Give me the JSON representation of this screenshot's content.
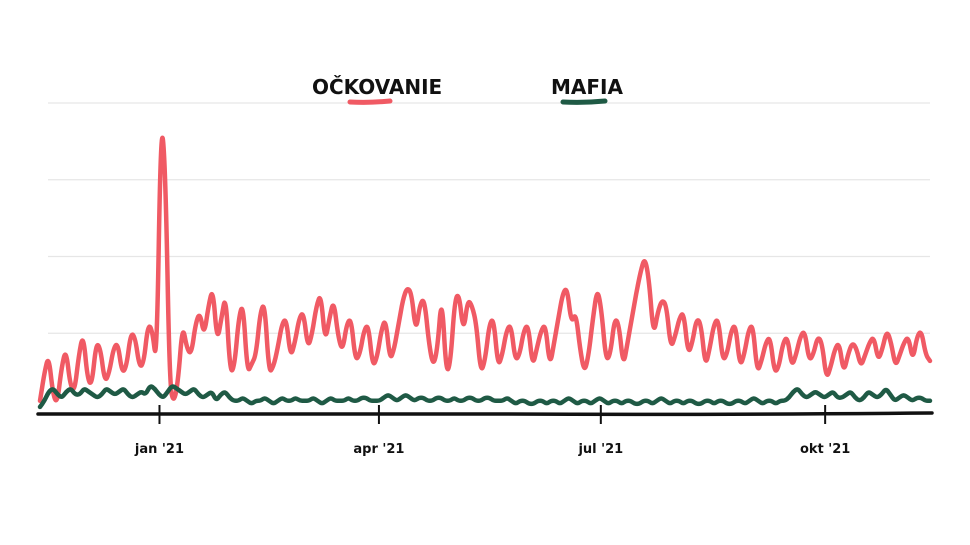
{
  "chart_data": {
    "type": "line",
    "xlabel": "",
    "ylabel": "",
    "x_start": "2020-11-13",
    "x_end": "2021-11-13",
    "ylim": [
      0,
      100
    ],
    "grid": true,
    "legend_position": "top",
    "x_ticks": [
      {
        "label": "jan '21",
        "date": "2021-01-01"
      },
      {
        "label": "apr '21",
        "date": "2021-04-01"
      },
      {
        "label": "jul '21",
        "date": "2021-07-01"
      },
      {
        "label": "okt '21",
        "date": "2021-10-01"
      }
    ],
    "series": [
      {
        "name": "OČKOVANIE",
        "color": "#f05a64",
        "values": [
          3,
          12,
          18,
          5,
          2,
          14,
          20,
          8,
          6,
          18,
          25,
          10,
          8,
          22,
          20,
          9,
          12,
          20,
          22,
          12,
          14,
          25,
          24,
          14,
          15,
          28,
          26,
          14,
          95,
          80,
          8,
          2,
          10,
          28,
          20,
          18,
          28,
          32,
          24,
          34,
          40,
          22,
          30,
          38,
          12,
          14,
          30,
          35,
          12,
          15,
          18,
          32,
          35,
          12,
          14,
          20,
          28,
          30,
          17,
          22,
          30,
          32,
          20,
          25,
          34,
          38,
          22,
          30,
          36,
          24,
          19,
          28,
          30,
          16,
          18,
          26,
          28,
          14,
          17,
          26,
          30,
          16,
          20,
          28,
          36,
          40,
          38,
          25,
          35,
          36,
          22,
          14,
          20,
          38,
          12,
          15,
          36,
          38,
          25,
          36,
          34,
          28,
          12,
          16,
          28,
          30,
          14,
          18,
          26,
          28,
          16,
          18,
          26,
          28,
          14,
          20,
          26,
          28,
          14,
          22,
          30,
          38,
          40,
          28,
          32,
          20,
          12,
          18,
          30,
          40,
          32,
          16,
          18,
          30,
          28,
          14,
          22,
          30,
          38,
          45,
          50,
          42,
          24,
          32,
          36,
          34,
          20,
          24,
          30,
          32,
          18,
          22,
          30,
          28,
          14,
          20,
          28,
          30,
          16,
          18,
          26,
          28,
          14,
          18,
          26,
          28,
          12,
          16,
          22,
          24,
          12,
          14,
          22,
          24,
          14,
          18,
          24,
          26,
          16,
          18,
          24,
          22,
          10,
          14,
          20,
          22,
          12,
          18,
          22,
          20,
          14,
          18,
          22,
          24,
          16,
          20,
          26,
          22,
          14,
          18,
          22,
          24,
          16,
          24,
          26,
          18,
          16
        ]
      },
      {
        "name": "MAFIA",
        "color": "#1f5a45",
        "values": [
          1,
          3,
          6,
          7,
          5,
          4,
          6,
          7,
          5,
          5,
          7,
          6,
          5,
          4,
          5,
          7,
          6,
          5,
          6,
          7,
          5,
          4,
          5,
          6,
          5,
          8,
          7,
          5,
          4,
          6,
          8,
          7,
          6,
          5,
          6,
          7,
          5,
          4,
          5,
          6,
          3,
          5,
          6,
          4,
          3,
          3,
          4,
          3,
          2,
          3,
          3,
          4,
          3,
          2,
          3,
          4,
          3,
          3,
          4,
          3,
          3,
          3,
          4,
          3,
          2,
          3,
          4,
          3,
          3,
          3,
          4,
          3,
          3,
          4,
          4,
          3,
          3,
          3,
          4,
          5,
          4,
          3,
          4,
          5,
          4,
          3,
          4,
          4,
          3,
          3,
          4,
          4,
          3,
          3,
          4,
          3,
          3,
          4,
          4,
          3,
          3,
          4,
          4,
          3,
          3,
          3,
          4,
          3,
          2,
          3,
          3,
          2,
          2,
          3,
          3,
          2,
          3,
          3,
          2,
          3,
          4,
          3,
          2,
          3,
          3,
          2,
          3,
          4,
          3,
          2,
          3,
          3,
          2,
          3,
          3,
          2,
          2,
          3,
          3,
          2,
          3,
          4,
          3,
          2,
          3,
          3,
          2,
          3,
          3,
          2,
          2,
          3,
          3,
          2,
          3,
          3,
          2,
          2,
          3,
          3,
          2,
          3,
          4,
          3,
          2,
          3,
          3,
          2,
          3,
          3,
          4,
          6,
          7,
          5,
          4,
          5,
          6,
          5,
          4,
          5,
          6,
          4,
          4,
          5,
          6,
          4,
          3,
          4,
          6,
          5,
          4,
          5,
          7,
          5,
          3,
          4,
          5,
          4,
          3,
          4,
          4,
          3,
          3
        ]
      }
    ]
  }
}
